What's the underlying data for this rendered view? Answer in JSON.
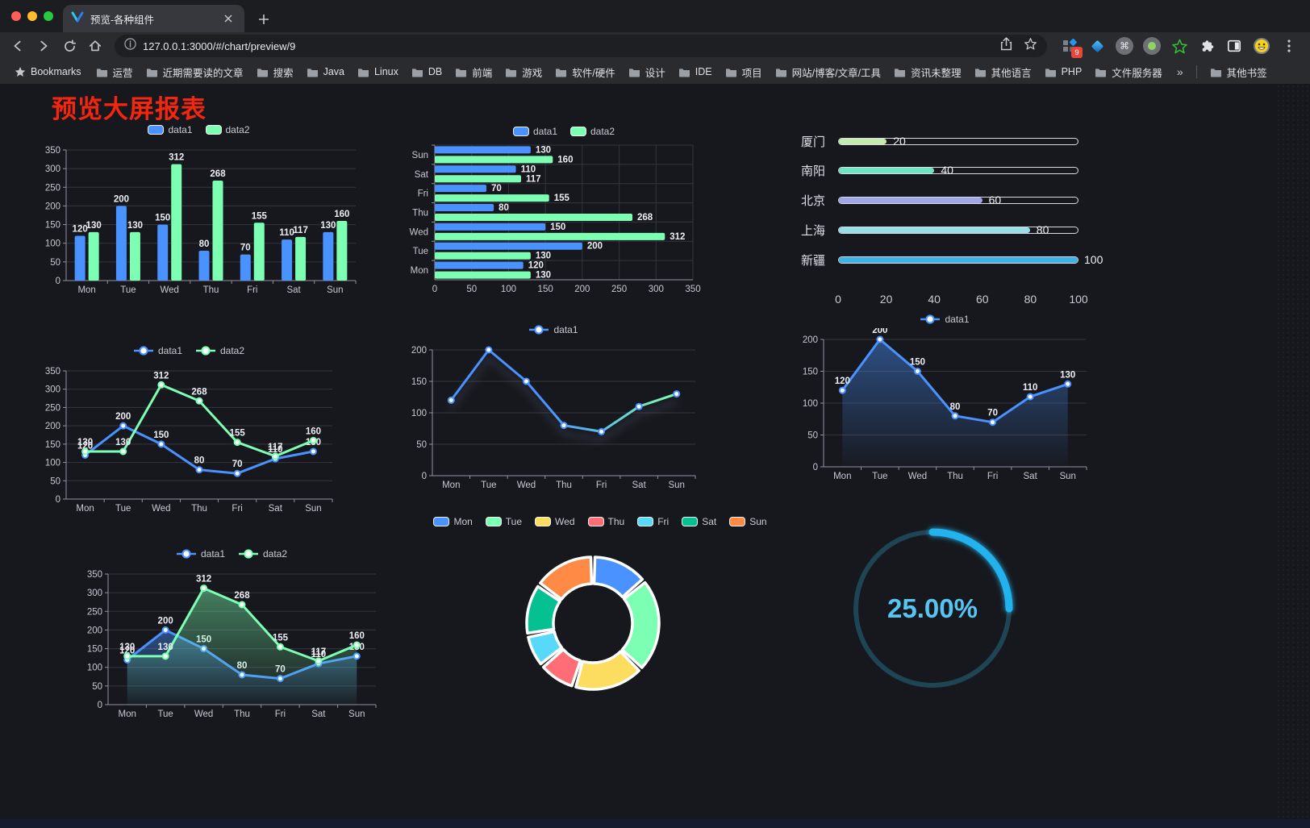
{
  "browser": {
    "tab": {
      "title": "预览-各种组件"
    },
    "toolbar": {
      "url": "127.0.0.1:3000/#/chart/preview/9"
    },
    "extensions": {
      "badge": "9"
    },
    "bookmarks": {
      "label": "Bookmarks",
      "folders": [
        "运营",
        "近期需要读的文章",
        "搜索",
        "Java",
        "Linux",
        "DB",
        "前端",
        "游戏",
        "软件/硬件",
        "设计",
        "IDE",
        "项目",
        "网站/博客/文章/工具",
        "资讯未整理",
        "其他语言",
        "PHP",
        "文件服务器"
      ],
      "overflow": "»",
      "other_bookmarks": "其他书签"
    }
  },
  "page": {
    "title": "预览大屏报表"
  },
  "palette": {
    "blue": "#4992ff",
    "green": "#7cffb2",
    "yellow": "#fddd60",
    "red": "#ff6e76",
    "cyan": "#58d9f9",
    "teal": "#05c091",
    "orange": "#ff8a45"
  },
  "chart_data": [
    {
      "id": "chart-1",
      "type": "bar",
      "legend_position": "top",
      "grid": true,
      "categories": [
        "Mon",
        "Tue",
        "Wed",
        "Thu",
        "Fri",
        "Sat",
        "Sun"
      ],
      "series": [
        {
          "name": "data1",
          "color": "#4992ff",
          "values": [
            120,
            200,
            150,
            80,
            70,
            110,
            130
          ]
        },
        {
          "name": "data2",
          "color": "#7cffb2",
          "values": [
            130,
            130,
            312,
            268,
            155,
            117,
            160
          ]
        }
      ],
      "ylim": [
        0,
        350
      ],
      "ytick": 50,
      "value_labels": true
    },
    {
      "id": "chart-2",
      "type": "bar-horizontal",
      "legend_position": "top",
      "grid": true,
      "categories": [
        "Mon",
        "Tue",
        "Wed",
        "Thu",
        "Fri",
        "Sat",
        "Sun"
      ],
      "series": [
        {
          "name": "data1",
          "color": "#4992ff",
          "values": [
            120,
            200,
            150,
            80,
            70,
            110,
            130
          ]
        },
        {
          "name": "data2",
          "color": "#7cffb2",
          "values": [
            130,
            130,
            312,
            268,
            155,
            117,
            160
          ]
        }
      ],
      "xlim": [
        0,
        350
      ],
      "xtick": 50,
      "value_labels": true
    },
    {
      "id": "chart-3",
      "type": "bar-horizontal",
      "subtype": "progress-list",
      "items": [
        {
          "label": "厦门",
          "value": 20,
          "color": "#c4ebad"
        },
        {
          "label": "南阳",
          "value": 40,
          "color": "#6be6c1"
        },
        {
          "label": "北京",
          "value": 60,
          "color": "#a0a7e6"
        },
        {
          "label": "上海",
          "value": 80,
          "color": "#96dee8"
        },
        {
          "label": "新疆",
          "value": 100,
          "color": "#3fb1e3"
        }
      ],
      "xlim": [
        0,
        100
      ],
      "xticks": [
        0,
        20,
        40,
        60,
        80,
        100
      ]
    },
    {
      "id": "chart-4",
      "type": "line",
      "legend_position": "top",
      "grid": true,
      "categories": [
        "Mon",
        "Tue",
        "Wed",
        "Thu",
        "Fri",
        "Sat",
        "Sun"
      ],
      "series": [
        {
          "name": "data1",
          "color": "#4992ff",
          "values": [
            120,
            200,
            150,
            80,
            70,
            110,
            130
          ]
        },
        {
          "name": "data2",
          "color": "#7cffb2",
          "values": [
            130,
            130,
            312,
            268,
            155,
            117,
            160
          ]
        }
      ],
      "ylim": [
        0,
        350
      ],
      "ytick": 50,
      "value_labels": true
    },
    {
      "id": "chart-5",
      "type": "line",
      "legend_position": "top",
      "grid": true,
      "categories": [
        "Mon",
        "Tue",
        "Wed",
        "Thu",
        "Fri",
        "Sat",
        "Sun"
      ],
      "series": [
        {
          "name": "data1",
          "color": "#4992ff",
          "gradient": [
            "#4992ff",
            "#7cffb2"
          ],
          "shadow": true,
          "values": [
            120,
            200,
            150,
            80,
            70,
            110,
            130
          ]
        }
      ],
      "ylim": [
        0,
        200
      ],
      "ytick": 50,
      "value_labels": false
    },
    {
      "id": "chart-6",
      "type": "area",
      "legend_position": "top",
      "grid": true,
      "categories": [
        "Mon",
        "Tue",
        "Wed",
        "Thu",
        "Fri",
        "Sat",
        "Sun"
      ],
      "series": [
        {
          "name": "data1",
          "color": "#4992ff",
          "area": true,
          "values": [
            120,
            200,
            150,
            80,
            70,
            110,
            130
          ]
        }
      ],
      "ylim": [
        0,
        200
      ],
      "ytick": 50,
      "value_labels": true
    },
    {
      "id": "chart-7",
      "type": "area",
      "legend_position": "top",
      "grid": true,
      "categories": [
        "Mon",
        "Tue",
        "Wed",
        "Thu",
        "Fri",
        "Sat",
        "Sun"
      ],
      "series": [
        {
          "name": "data1",
          "color": "#4992ff",
          "area": true,
          "values": [
            120,
            200,
            150,
            80,
            70,
            110,
            130
          ]
        },
        {
          "name": "data2",
          "color": "#7cffb2",
          "area": true,
          "values": [
            130,
            130,
            312,
            268,
            155,
            117,
            160
          ]
        }
      ],
      "ylim": [
        0,
        350
      ],
      "ytick": 50,
      "value_labels": true
    },
    {
      "id": "chart-8",
      "type": "pie",
      "subtype": "donut",
      "legend_position": "top",
      "categories": [
        "Mon",
        "Tue",
        "Wed",
        "Thu",
        "Fri",
        "Sat",
        "Sun"
      ],
      "values": [
        120,
        200,
        150,
        80,
        70,
        110,
        130
      ],
      "colors": [
        "#4992ff",
        "#7cffb2",
        "#fddd60",
        "#ff6e76",
        "#58d9f9",
        "#05c091",
        "#ff8a45"
      ]
    },
    {
      "id": "chart-9",
      "type": "gauge",
      "value": 25,
      "label": "25.00%",
      "color": "#22b2ee",
      "track_color": "#1d4553",
      "text_color": "#56c5f2"
    }
  ]
}
